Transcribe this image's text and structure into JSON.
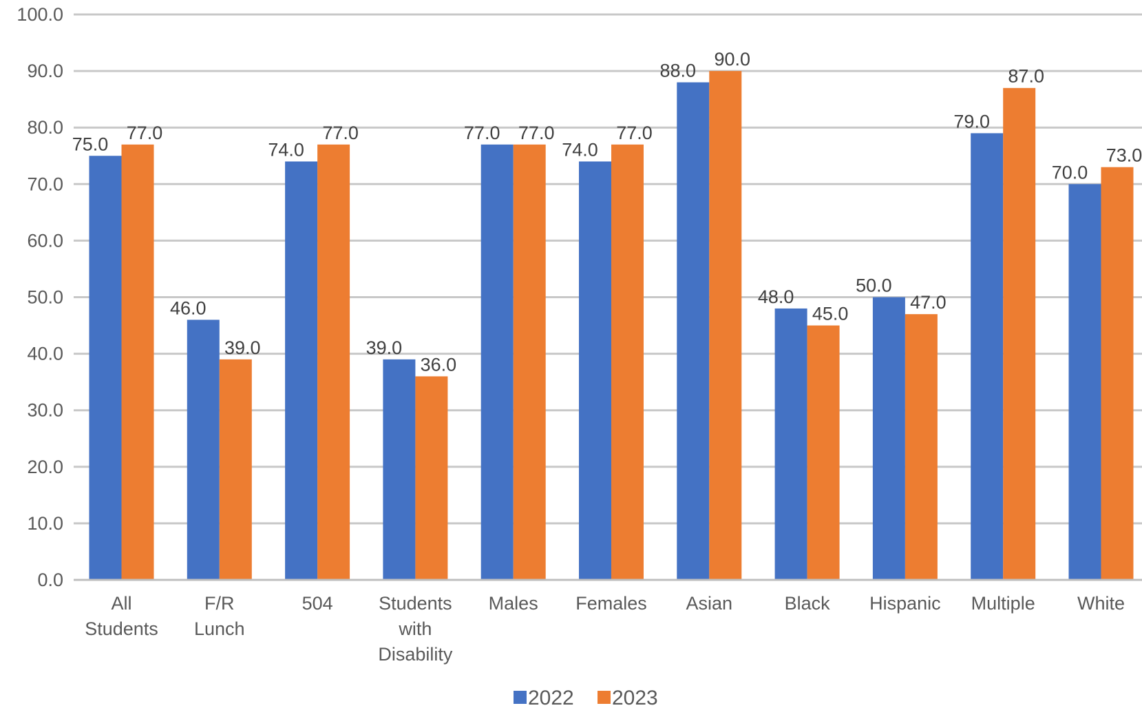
{
  "chart_data": {
    "type": "bar",
    "categories": [
      [
        "All",
        "Students"
      ],
      [
        "F/R",
        "Lunch"
      ],
      [
        "504"
      ],
      [
        "Students",
        "with",
        "Disability"
      ],
      [
        "Males"
      ],
      [
        "Females"
      ],
      [
        "Asian"
      ],
      [
        "Black"
      ],
      [
        "Hispanic"
      ],
      [
        "Multiple"
      ],
      [
        "White"
      ]
    ],
    "series": [
      {
        "name": "2022",
        "color": "#4472c4",
        "values": [
          75,
          46,
          74,
          39,
          77,
          74,
          88,
          48,
          50,
          79,
          70
        ]
      },
      {
        "name": "2023",
        "color": "#ed7d31",
        "values": [
          77,
          39,
          77,
          36,
          77,
          77,
          90,
          45,
          47,
          87,
          73
        ]
      }
    ],
    "ylim": [
      0,
      100
    ],
    "yticks": [
      "0.0",
      "10.0",
      "20.0",
      "30.0",
      "40.0",
      "50.0",
      "60.0",
      "70.0",
      "80.0",
      "90.0",
      "100.0"
    ],
    "grid": true,
    "legend": "bottom",
    "data_labels": true,
    "title": "",
    "xlabel": "",
    "ylabel": ""
  }
}
